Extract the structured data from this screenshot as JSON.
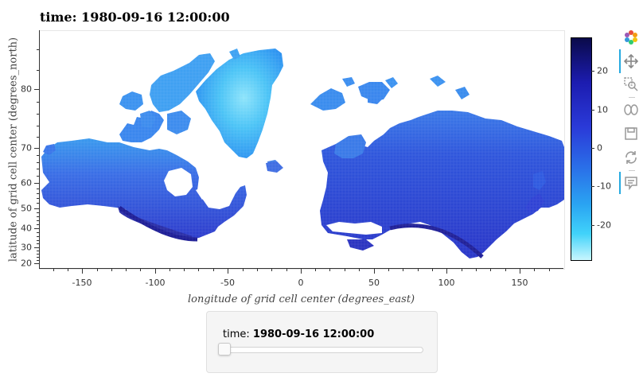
{
  "title": "time: 1980-09-16 12:00:00",
  "map": {
    "xlabel": "longitude of grid cell center (degrees_east)",
    "ylabel": "latitude of grid cell center (degrees_north)",
    "x_ticks": [
      "-150",
      "-100",
      "-50",
      "0",
      "50",
      "100",
      "150"
    ],
    "y_ticks": [
      "20",
      "30",
      "40",
      "50",
      "60",
      "70",
      "80"
    ],
    "xlim": [
      -180,
      180
    ],
    "ylim": [
      18,
      93
    ],
    "y_scale": "mercator-like (stretched toward pole)",
    "colormap": "blues (dark navy high, light cyan low)"
  },
  "colorbar": {
    "ticks": [
      "20",
      "10",
      "0",
      "-10",
      "-20"
    ],
    "range": [
      -30,
      28
    ]
  },
  "toolbar": {
    "tools": [
      "bokeh-logo-icon",
      "pan-icon",
      "box-zoom-icon",
      "wheel-zoom-icon",
      "save-icon",
      "reset-icon",
      "hover-icon"
    ]
  },
  "widget": {
    "label": "time:",
    "value": "1980-09-16 12:00:00",
    "slider_position": 0
  }
}
